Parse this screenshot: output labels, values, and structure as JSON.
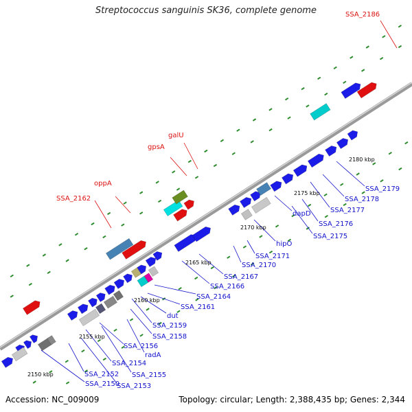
{
  "title": "Streptococcus sanguinis SK36, complete genome",
  "footer": {
    "accession": "Accession: NC_009009",
    "summary": "Topology: circular; Length: 2,388,435 bp; Genes: 2,344"
  },
  "colors": {
    "backbone": "#888888",
    "dots": "#2e8b2e",
    "gene_blue": "#1c1ce8",
    "gene_red": "#e01010",
    "label_red": "#dd1111",
    "label_blue": "#1111cc"
  },
  "kbp_ticks": [
    "2150 kbp",
    "2155 kbp",
    "2160 kbp",
    "2165 kbp",
    "2170 kbp",
    "2175 kbp",
    "2180 kbp"
  ],
  "top_labels": [
    "SSA_2162",
    "oppA",
    "gpsA",
    "galU",
    "SSA_2186"
  ],
  "bottom_labels": [
    "SSA_2150",
    "SSA_2152",
    "SSA_2153",
    "SSA_2154",
    "SSA_2155",
    "radA",
    "SSA_2156",
    "SSA_2158",
    "SSA_2159",
    "dut",
    "SSA_2161",
    "SSA_2164",
    "SSA_2166",
    "SSA_2167",
    "SSA_2170",
    "SSA_2171",
    "hipO",
    "dapD",
    "SSA_2175",
    "SSA_2176",
    "SSA_2177",
    "SSA_2178",
    "SSA_2179"
  ]
}
